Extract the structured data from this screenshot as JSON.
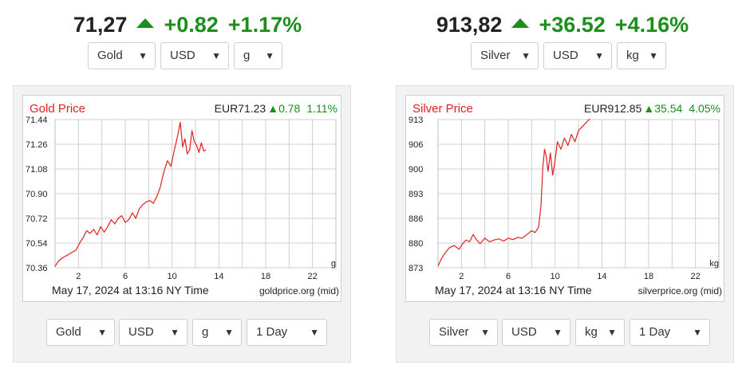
{
  "panels": [
    {
      "quote": {
        "price": "71,27",
        "change": "+0.82",
        "percent": "+1.17%"
      },
      "top_selects": [
        "Gold",
        "USD",
        "g"
      ],
      "chart": {
        "title": "Gold Price",
        "quote_price": "EUR71.23",
        "quote_change": "0.78",
        "quote_percent": "1.11%",
        "unit": "g",
        "footer_date": "May 17, 2024 at 13:16 NY Time",
        "footer_source": "goldprice.org (mid)"
      },
      "bottom_selects": [
        "Gold",
        "USD",
        "g",
        "1 Day"
      ]
    },
    {
      "quote": {
        "price": "913,82",
        "change": "+36.52",
        "percent": "+4.16%"
      },
      "top_selects": [
        "Silver",
        "USD",
        "kg"
      ],
      "chart": {
        "title": "Silver Price",
        "quote_price": "EUR912.85",
        "quote_change": "35.54",
        "quote_percent": "4.05%",
        "unit": "kg",
        "footer_date": "May 17, 2024 at 13:16 NY Time",
        "footer_source": "silverprice.org (mid)"
      },
      "bottom_selects": [
        "Silver",
        "USD",
        "kg",
        "1 Day"
      ]
    }
  ],
  "chart_data": [
    {
      "type": "line",
      "title": "Gold Price",
      "xlabel": "",
      "ylabel": "",
      "x_ticks": [
        "2",
        "6",
        "10",
        "14",
        "18",
        "22"
      ],
      "y_ticks": [
        "70.36",
        "70.54",
        "70.72",
        "70.90",
        "71.08",
        "71.26",
        "71.44"
      ],
      "ylim": [
        70.36,
        71.44
      ],
      "xlim": [
        0,
        24
      ],
      "grid": true,
      "series": [
        {
          "color": "#e02020",
          "x": [
            0,
            0.3,
            0.6,
            1,
            1.4,
            1.8,
            2.1,
            2.4,
            2.7,
            3,
            3.3,
            3.6,
            3.9,
            4.2,
            4.5,
            4.8,
            5.1,
            5.4,
            5.7,
            6,
            6.3,
            6.6,
            6.9,
            7.2,
            7.5,
            7.8,
            8.1,
            8.4,
            8.7,
            9,
            9.3,
            9.6,
            9.9,
            10.2,
            10.5,
            10.7,
            10.9,
            11.1,
            11.3,
            11.5,
            11.7,
            11.9,
            12.1,
            12.3,
            12.5,
            12.7,
            12.9
          ],
          "values": [
            70.37,
            70.41,
            70.43,
            70.45,
            70.47,
            70.49,
            70.54,
            70.58,
            70.63,
            70.61,
            70.64,
            70.6,
            70.66,
            70.62,
            70.66,
            70.71,
            70.68,
            70.72,
            70.74,
            70.69,
            70.71,
            70.76,
            70.72,
            70.79,
            70.82,
            70.84,
            70.85,
            70.83,
            70.88,
            70.95,
            71.06,
            71.14,
            71.1,
            71.22,
            71.33,
            71.42,
            71.24,
            71.3,
            71.19,
            71.22,
            71.36,
            71.28,
            71.25,
            71.2,
            71.27,
            71.21,
            71.22
          ]
        }
      ]
    },
    {
      "type": "line",
      "title": "Silver Price",
      "xlabel": "",
      "ylabel": "",
      "x_ticks": [
        "2",
        "6",
        "10",
        "14",
        "18",
        "22"
      ],
      "y_ticks": [
        "873",
        "880",
        "886",
        "893",
        "900",
        "906",
        "913"
      ],
      "ylim": [
        873,
        913
      ],
      "xlim": [
        0,
        24
      ],
      "grid": true,
      "series": [
        {
          "color": "#e02020",
          "x": [
            0,
            0.3,
            0.6,
            1,
            1.4,
            1.8,
            2.1,
            2.4,
            2.7,
            3,
            3.3,
            3.6,
            4,
            4.4,
            4.8,
            5.2,
            5.6,
            6,
            6.4,
            6.8,
            7.2,
            7.6,
            8,
            8.3,
            8.6,
            8.8,
            8.95,
            9.1,
            9.25,
            9.4,
            9.6,
            9.8,
            10,
            10.2,
            10.5,
            10.8,
            11.1,
            11.4,
            11.7,
            12,
            12.3,
            12.6,
            12.9,
            13
          ],
          "values": [
            873.5,
            875.5,
            877,
            878.5,
            879,
            878,
            879.5,
            880.5,
            880,
            882,
            880.5,
            879.5,
            881,
            880,
            880.5,
            880.8,
            880.2,
            881,
            880.6,
            881.2,
            881,
            882,
            883,
            882.5,
            884,
            890,
            900,
            905,
            903,
            899,
            904,
            898,
            902,
            907,
            905,
            908,
            906,
            909,
            907,
            910,
            911,
            912,
            913,
            913.5
          ]
        }
      ]
    }
  ]
}
